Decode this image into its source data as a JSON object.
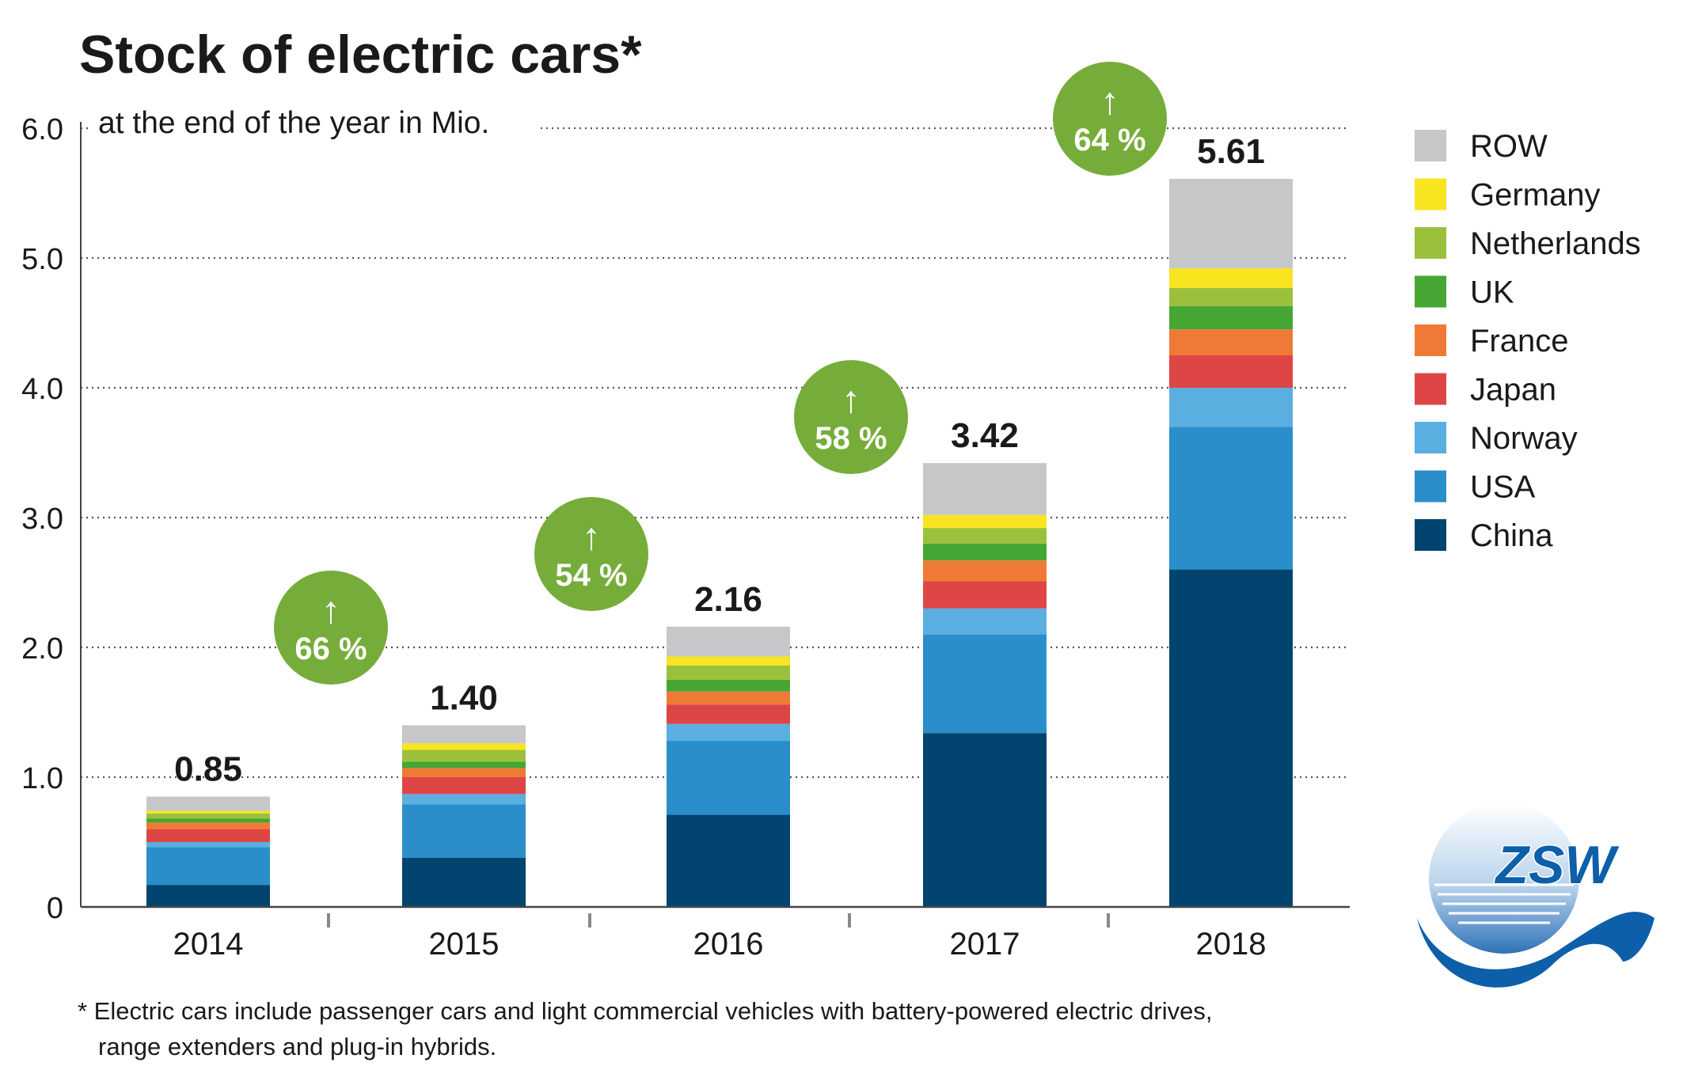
{
  "chart_data": {
    "type": "bar",
    "stacked": true,
    "title": "Stock of electric cars*",
    "subtitle": "at the end of the year in Mio.",
    "categories": [
      "2014",
      "2015",
      "2016",
      "2017",
      "2018"
    ],
    "ylim": [
      0,
      6
    ],
    "yticks": [
      0,
      1,
      2,
      3,
      4,
      5,
      6
    ],
    "ytick_labels": [
      "0",
      "1.0",
      "2.0",
      "3.0",
      "4.0",
      "5.0",
      "6.0"
    ],
    "grid": true,
    "legend_position": "right",
    "series": [
      {
        "name": "China",
        "color": "#00446f",
        "values": [
          0.17,
          0.38,
          0.71,
          1.34,
          2.6
        ]
      },
      {
        "name": "USA",
        "color": "#2a8ecb",
        "values": [
          0.29,
          0.41,
          0.57,
          0.76,
          1.1
        ]
      },
      {
        "name": "Norway",
        "color": "#5aafe0",
        "values": [
          0.04,
          0.08,
          0.13,
          0.2,
          0.3
        ]
      },
      {
        "name": "Japan",
        "color": "#de4545",
        "values": [
          0.1,
          0.13,
          0.15,
          0.21,
          0.25
        ]
      },
      {
        "name": "France",
        "color": "#ee7a36",
        "values": [
          0.05,
          0.07,
          0.1,
          0.16,
          0.2
        ]
      },
      {
        "name": "UK",
        "color": "#46a633",
        "values": [
          0.03,
          0.05,
          0.09,
          0.13,
          0.18
        ]
      },
      {
        "name": "Netherlands",
        "color": "#9bc13c",
        "values": [
          0.04,
          0.09,
          0.11,
          0.12,
          0.14
        ]
      },
      {
        "name": "Germany",
        "color": "#f8e41f",
        "values": [
          0.02,
          0.05,
          0.07,
          0.1,
          0.15
        ]
      },
      {
        "name": "ROW",
        "color": "#c6c7c9",
        "values": [
          0.11,
          0.14,
          0.23,
          0.4,
          0.69
        ]
      }
    ],
    "totals": [
      0.85,
      1.4,
      2.16,
      3.42,
      5.61
    ],
    "total_labels": [
      "0.85",
      "1.40",
      "2.16",
      "3.42",
      "5.61"
    ],
    "growth_labels": [
      "66 %",
      "54 %",
      "58 %",
      "64 %"
    ],
    "growth_arrow": "↑",
    "growth_color": "#76ad3a"
  },
  "footnote": {
    "line1": "* Electric cars include passenger cars and light commercial vehicles with battery-powered electric drives,",
    "line2": "range extenders and plug-in hybrids."
  },
  "logo": {
    "text": "ZSW",
    "color": "#0c5fa8"
  }
}
